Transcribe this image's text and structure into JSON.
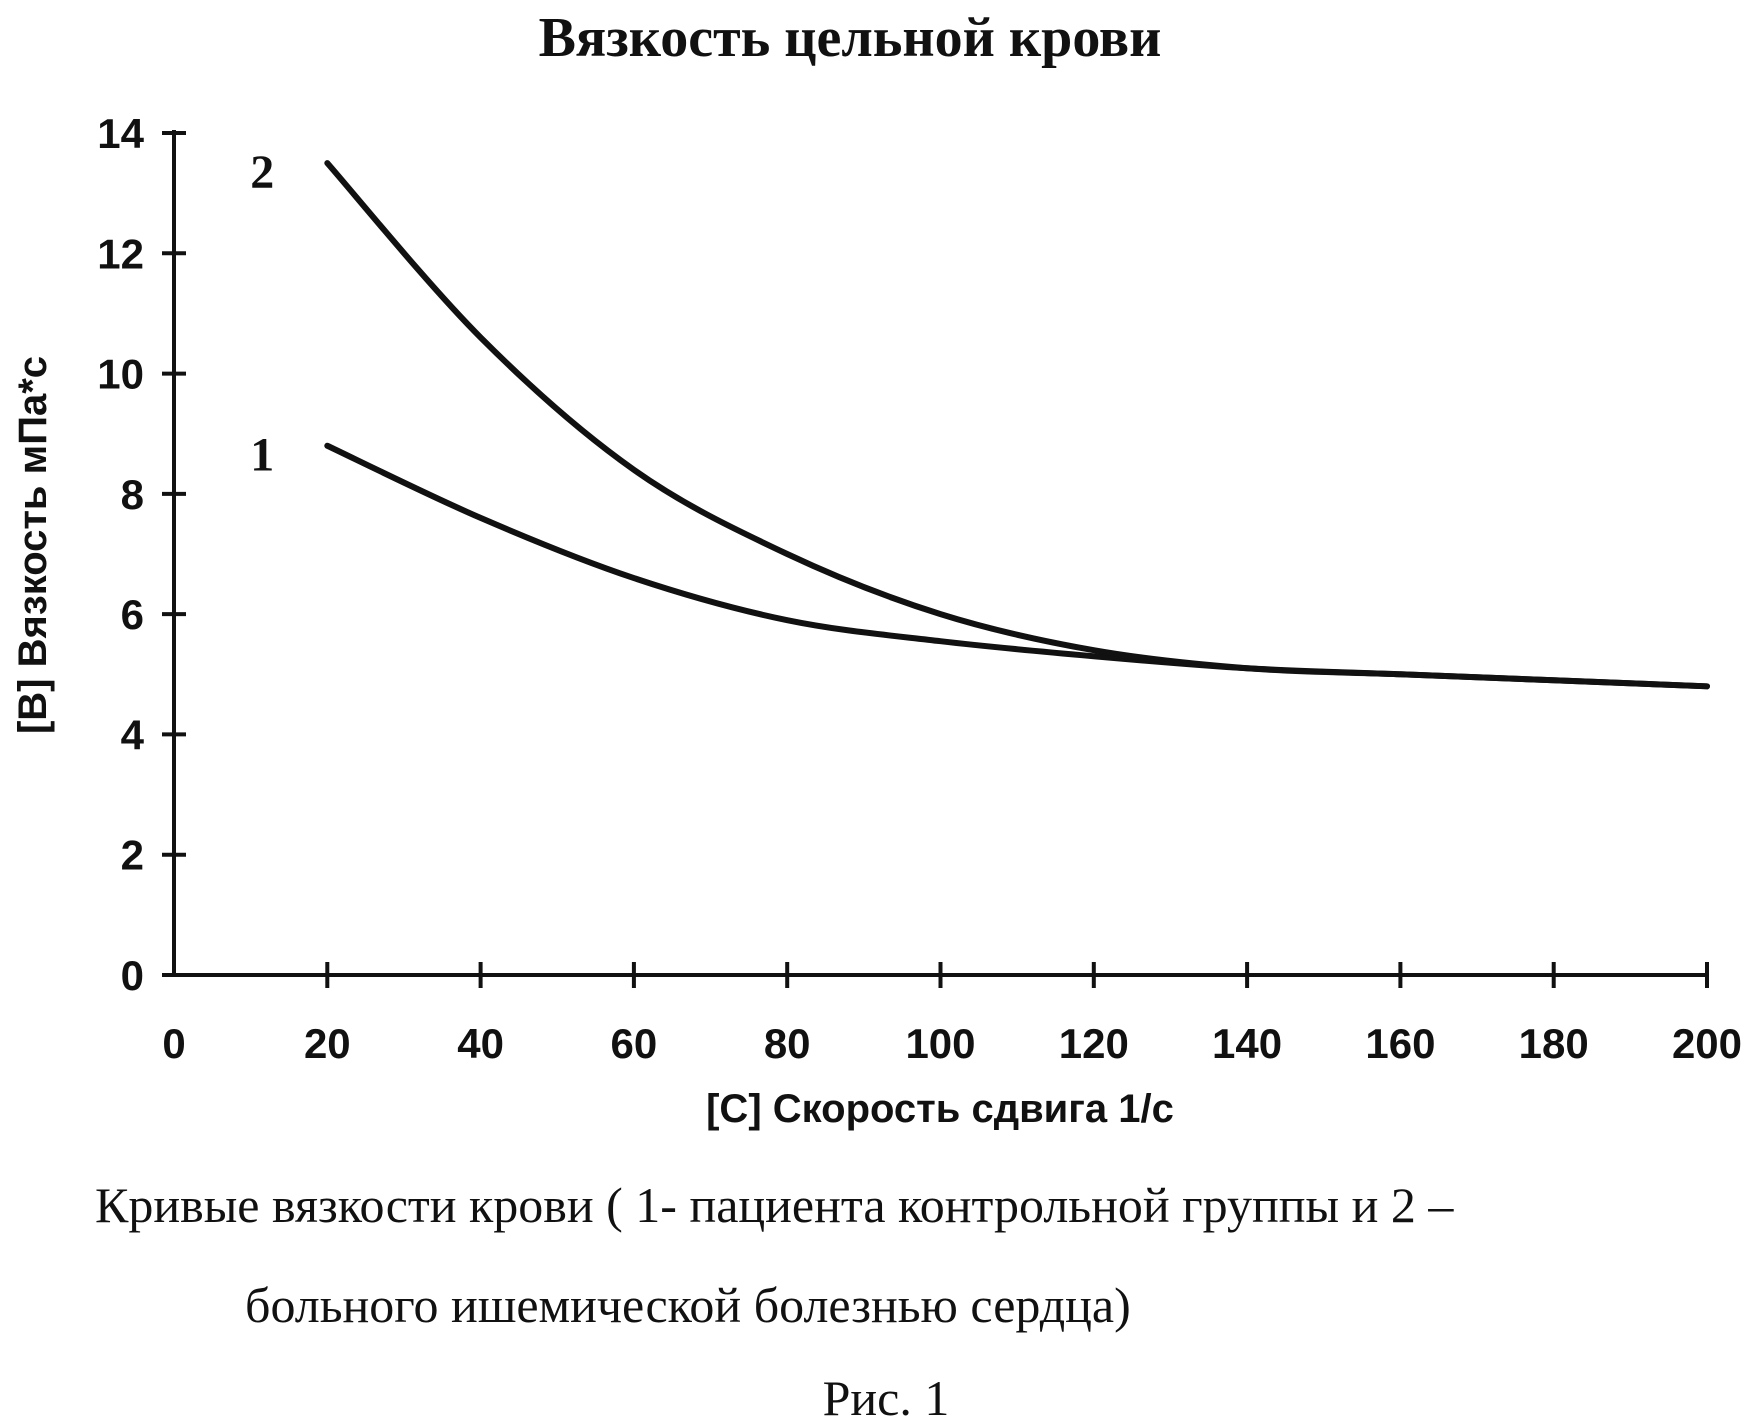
{
  "chart_data": {
    "type": "line",
    "title": "Вязкость цельной крови",
    "xlabel": "[С] Скорость сдвига 1/с",
    "ylabel": "[В] Вязкость мПа*с",
    "xlim": [
      0,
      200
    ],
    "ylim": [
      0,
      14
    ],
    "x_ticks": [
      0,
      20,
      40,
      60,
      80,
      100,
      120,
      140,
      160,
      180,
      200
    ],
    "y_ticks": [
      0,
      2,
      4,
      6,
      8,
      10,
      12,
      14
    ],
    "grid": false,
    "series": [
      {
        "name": "1",
        "x": [
          20,
          40,
          60,
          80,
          100,
          120,
          140,
          160,
          180,
          200
        ],
        "values": [
          8.8,
          7.6,
          6.6,
          5.9,
          5.55,
          5.3,
          5.1,
          5.0,
          4.9,
          4.8
        ]
      },
      {
        "name": "2",
        "x": [
          20,
          40,
          60,
          80,
          100,
          120,
          140,
          160,
          180,
          200
        ],
        "values": [
          13.5,
          10.6,
          8.4,
          7.0,
          6.0,
          5.4,
          5.1,
          5.0,
          4.9,
          4.8
        ]
      }
    ]
  },
  "caption": {
    "line1": "Кривые вязкости  крови ( 1- пациента контрольной группы и 2 –",
    "line2": "больного ишемической болезнью сердца)",
    "figure": "Рис. 1"
  }
}
